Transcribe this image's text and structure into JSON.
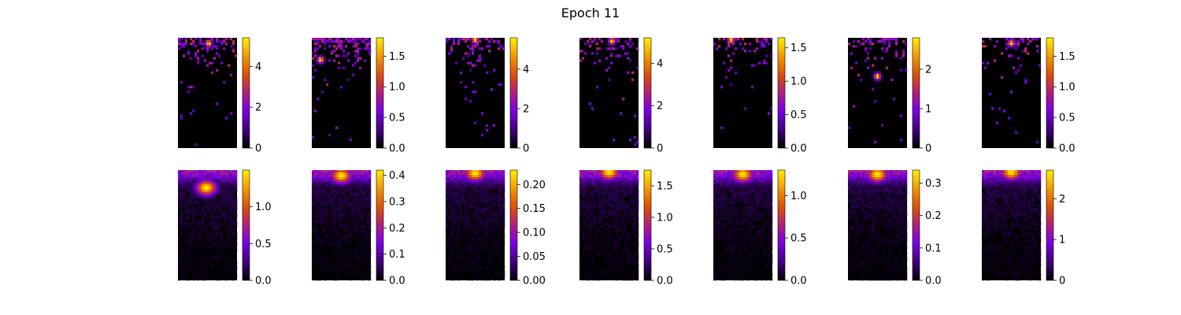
{
  "chart_data": {
    "type": "heatmap",
    "title": "Epoch 11",
    "colormap": "gnuplot",
    "rows": 2,
    "cols": 7,
    "panels": [
      {
        "row": 0,
        "col": 0,
        "style": "sparse",
        "peak": [
          0.52,
          0.05
        ],
        "vmax": 5.4,
        "ticks": [
          "0",
          "2",
          "4"
        ],
        "tick_values": [
          0,
          2,
          4
        ],
        "density": 0.5
      },
      {
        "row": 0,
        "col": 1,
        "style": "sparse",
        "peak": [
          0.15,
          0.2
        ],
        "vmax": 1.8,
        "ticks": [
          "0.0",
          "0.5",
          "1.0",
          "1.5"
        ],
        "tick_values": [
          0,
          0.5,
          1.0,
          1.5
        ],
        "density": 0.7
      },
      {
        "row": 0,
        "col": 2,
        "style": "sparse",
        "peak": [
          0.5,
          0.02
        ],
        "vmax": 5.6,
        "ticks": [
          "0",
          "2",
          "4"
        ],
        "tick_values": [
          0,
          2,
          4
        ],
        "density": 0.5
      },
      {
        "row": 0,
        "col": 3,
        "style": "sparse",
        "peak": [
          0.55,
          0.03
        ],
        "vmax": 5.2,
        "ticks": [
          "0",
          "2",
          "4"
        ],
        "tick_values": [
          0,
          2,
          4
        ],
        "density": 0.45
      },
      {
        "row": 0,
        "col": 4,
        "style": "sparse",
        "peak": [
          0.3,
          0.02
        ],
        "vmax": 1.65,
        "ticks": [
          "0.0",
          "0.5",
          "1.0",
          "1.5"
        ],
        "tick_values": [
          0,
          0.5,
          1.0,
          1.5
        ],
        "density": 0.3
      },
      {
        "row": 0,
        "col": 5,
        "style": "sparse",
        "peak": [
          0.5,
          0.35
        ],
        "vmax": 2.8,
        "ticks": [
          "0",
          "1",
          "2"
        ],
        "tick_values": [
          0,
          1,
          2
        ],
        "density": 0.45
      },
      {
        "row": 0,
        "col": 6,
        "style": "sparse",
        "peak": [
          0.5,
          0.05
        ],
        "vmax": 1.8,
        "ticks": [
          "0.0",
          "0.5",
          "1.0",
          "1.5"
        ],
        "tick_values": [
          0,
          0.5,
          1.0,
          1.5
        ],
        "density": 0.35
      },
      {
        "row": 1,
        "col": 0,
        "style": "smooth",
        "peak": [
          0.48,
          0.16
        ],
        "vmax": 1.5,
        "ticks": [
          "0.0",
          "0.5",
          "1.0"
        ],
        "tick_values": [
          0,
          0.5,
          1.0
        ],
        "density": 0.0
      },
      {
        "row": 1,
        "col": 1,
        "style": "smooth",
        "peak": [
          0.5,
          0.05
        ],
        "vmax": 0.42,
        "ticks": [
          "0.0",
          "0.1",
          "0.2",
          "0.3",
          "0.4"
        ],
        "tick_values": [
          0,
          0.1,
          0.2,
          0.3,
          0.4
        ],
        "density": 0.0
      },
      {
        "row": 1,
        "col": 2,
        "style": "smooth",
        "peak": [
          0.5,
          0.03
        ],
        "vmax": 0.23,
        "ticks": [
          "0.00",
          "0.05",
          "0.10",
          "0.15",
          "0.20"
        ],
        "tick_values": [
          0,
          0.05,
          0.1,
          0.15,
          0.2
        ],
        "density": 0.0
      },
      {
        "row": 1,
        "col": 3,
        "style": "smooth",
        "peak": [
          0.5,
          0.02
        ],
        "vmax": 1.75,
        "ticks": [
          "0.0",
          "0.5",
          "1.0",
          "1.5"
        ],
        "tick_values": [
          0,
          0.5,
          1.0,
          1.5
        ],
        "density": 0.0
      },
      {
        "row": 1,
        "col": 4,
        "style": "smooth",
        "peak": [
          0.5,
          0.04
        ],
        "vmax": 1.3,
        "ticks": [
          "0.0",
          "0.5",
          "1.0"
        ],
        "tick_values": [
          0,
          0.5,
          1.0
        ],
        "density": 0.0
      },
      {
        "row": 1,
        "col": 5,
        "style": "smooth",
        "peak": [
          0.5,
          0.04
        ],
        "vmax": 0.34,
        "ticks": [
          "0.0",
          "0.1",
          "0.2",
          "0.3"
        ],
        "tick_values": [
          0,
          0.1,
          0.2,
          0.3
        ],
        "density": 0.0
      },
      {
        "row": 1,
        "col": 6,
        "style": "smooth",
        "peak": [
          0.5,
          0.02
        ],
        "vmax": 2.7,
        "ticks": [
          "0",
          "1",
          "2"
        ],
        "tick_values": [
          0,
          1,
          2
        ],
        "density": 0.0
      }
    ]
  }
}
